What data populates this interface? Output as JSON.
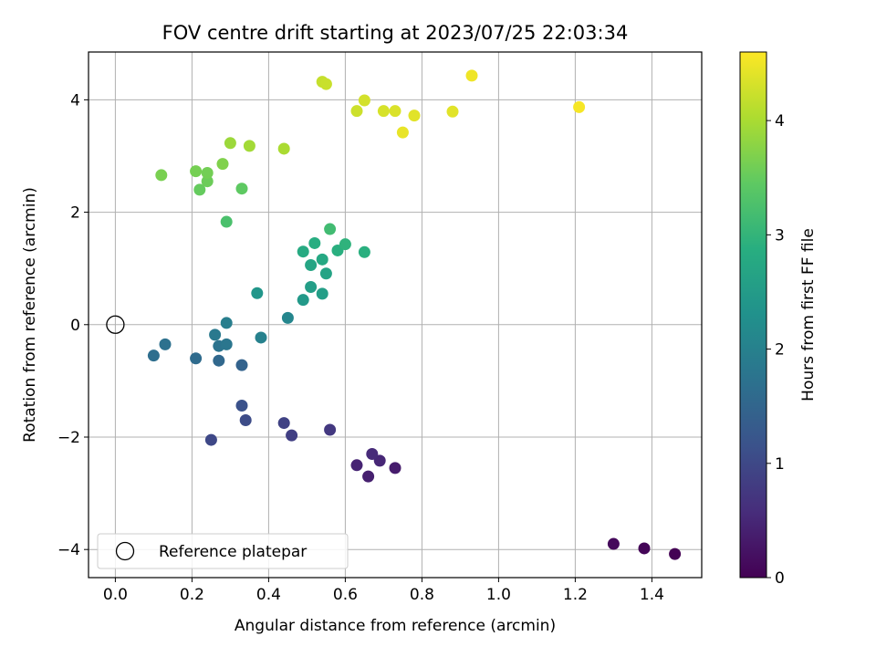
{
  "chart_data": {
    "type": "scatter",
    "title": "FOV centre drift starting at 2023/07/25 22:03:34",
    "xlabel": "Angular distance from reference (arcmin)",
    "ylabel": "Rotation from reference (arcmin)",
    "xlim": [
      -0.07,
      1.53
    ],
    "ylim": [
      -4.5,
      4.85
    ],
    "xticks": [
      "0.0",
      "0.2",
      "0.4",
      "0.6",
      "0.8",
      "1.0",
      "1.2",
      "1.4"
    ],
    "yticks": [
      "−4",
      "−2",
      "0",
      "2",
      "4"
    ],
    "grid": true,
    "legend": {
      "position": "bottom-left",
      "entries": [
        "Reference platepar"
      ]
    },
    "colorbar": {
      "label": "Hours from first FF file",
      "range": [
        0,
        4.6
      ],
      "ticks": [
        "0",
        "1",
        "2",
        "3",
        "4"
      ],
      "colormap": "viridis"
    },
    "reference_point": {
      "x": 0.0,
      "y": 0.0,
      "name": "Reference platepar"
    },
    "points": [
      {
        "x": 1.46,
        "y": -4.08,
        "hours": 0.0
      },
      {
        "x": 1.38,
        "y": -3.98,
        "hours": 0.05
      },
      {
        "x": 1.3,
        "y": -3.9,
        "hours": 0.1
      },
      {
        "x": 0.73,
        "y": -2.55,
        "hours": 0.35
      },
      {
        "x": 0.66,
        "y": -2.7,
        "hours": 0.4
      },
      {
        "x": 0.63,
        "y": -2.5,
        "hours": 0.45
      },
      {
        "x": 0.69,
        "y": -2.42,
        "hours": 0.5
      },
      {
        "x": 0.67,
        "y": -2.3,
        "hours": 0.55
      },
      {
        "x": 0.56,
        "y": -1.87,
        "hours": 0.75
      },
      {
        "x": 0.46,
        "y": -1.97,
        "hours": 0.85
      },
      {
        "x": 0.44,
        "y": -1.75,
        "hours": 0.9
      },
      {
        "x": 0.34,
        "y": -1.7,
        "hours": 1.05
      },
      {
        "x": 0.33,
        "y": -1.44,
        "hours": 1.15
      },
      {
        "x": 0.25,
        "y": -2.05,
        "hours": 1.0
      },
      {
        "x": 0.33,
        "y": -0.72,
        "hours": 1.45
      },
      {
        "x": 0.27,
        "y": -0.64,
        "hours": 1.55
      },
      {
        "x": 0.21,
        "y": -0.6,
        "hours": 1.6
      },
      {
        "x": 0.1,
        "y": -0.55,
        "hours": 1.65
      },
      {
        "x": 0.13,
        "y": -0.35,
        "hours": 1.7
      },
      {
        "x": 0.27,
        "y": -0.38,
        "hours": 1.75
      },
      {
        "x": 0.29,
        "y": -0.35,
        "hours": 1.8
      },
      {
        "x": 0.26,
        "y": -0.18,
        "hours": 1.85
      },
      {
        "x": 0.29,
        "y": 0.03,
        "hours": 1.95
      },
      {
        "x": 0.38,
        "y": -0.23,
        "hours": 2.0
      },
      {
        "x": 0.45,
        "y": 0.12,
        "hours": 2.1
      },
      {
        "x": 0.37,
        "y": 0.56,
        "hours": 2.4
      },
      {
        "x": 0.49,
        "y": 0.44,
        "hours": 2.45
      },
      {
        "x": 0.51,
        "y": 0.67,
        "hours": 2.55
      },
      {
        "x": 0.54,
        "y": 0.55,
        "hours": 2.55
      },
      {
        "x": 0.55,
        "y": 0.91,
        "hours": 2.65
      },
      {
        "x": 0.51,
        "y": 1.06,
        "hours": 2.7
      },
      {
        "x": 0.54,
        "y": 1.16,
        "hours": 2.75
      },
      {
        "x": 0.49,
        "y": 1.3,
        "hours": 2.8
      },
      {
        "x": 0.52,
        "y": 1.45,
        "hours": 2.85
      },
      {
        "x": 0.58,
        "y": 1.32,
        "hours": 2.9
      },
      {
        "x": 0.6,
        "y": 1.43,
        "hours": 2.95
      },
      {
        "x": 0.65,
        "y": 1.29,
        "hours": 2.9
      },
      {
        "x": 0.56,
        "y": 1.7,
        "hours": 3.15
      },
      {
        "x": 0.29,
        "y": 1.83,
        "hours": 3.25
      },
      {
        "x": 0.33,
        "y": 2.42,
        "hours": 3.45
      },
      {
        "x": 0.22,
        "y": 2.4,
        "hours": 3.5
      },
      {
        "x": 0.24,
        "y": 2.55,
        "hours": 3.55
      },
      {
        "x": 0.24,
        "y": 2.7,
        "hours": 3.6
      },
      {
        "x": 0.21,
        "y": 2.73,
        "hours": 3.62
      },
      {
        "x": 0.12,
        "y": 2.66,
        "hours": 3.65
      },
      {
        "x": 0.28,
        "y": 2.86,
        "hours": 3.7
      },
      {
        "x": 0.3,
        "y": 3.23,
        "hours": 3.9
      },
      {
        "x": 0.35,
        "y": 3.18,
        "hours": 3.95
      },
      {
        "x": 0.44,
        "y": 3.13,
        "hours": 4.0
      },
      {
        "x": 0.54,
        "y": 4.32,
        "hours": 4.2
      },
      {
        "x": 0.55,
        "y": 4.28,
        "hours": 4.22
      },
      {
        "x": 0.63,
        "y": 3.8,
        "hours": 4.25
      },
      {
        "x": 0.65,
        "y": 3.99,
        "hours": 4.3
      },
      {
        "x": 0.7,
        "y": 3.8,
        "hours": 4.32
      },
      {
        "x": 0.73,
        "y": 3.8,
        "hours": 4.35
      },
      {
        "x": 0.78,
        "y": 3.72,
        "hours": 4.4
      },
      {
        "x": 0.75,
        "y": 3.42,
        "hours": 4.45
      },
      {
        "x": 0.88,
        "y": 3.79,
        "hours": 4.4
      },
      {
        "x": 0.93,
        "y": 4.43,
        "hours": 4.5
      },
      {
        "x": 1.21,
        "y": 3.87,
        "hours": 4.55
      }
    ]
  }
}
